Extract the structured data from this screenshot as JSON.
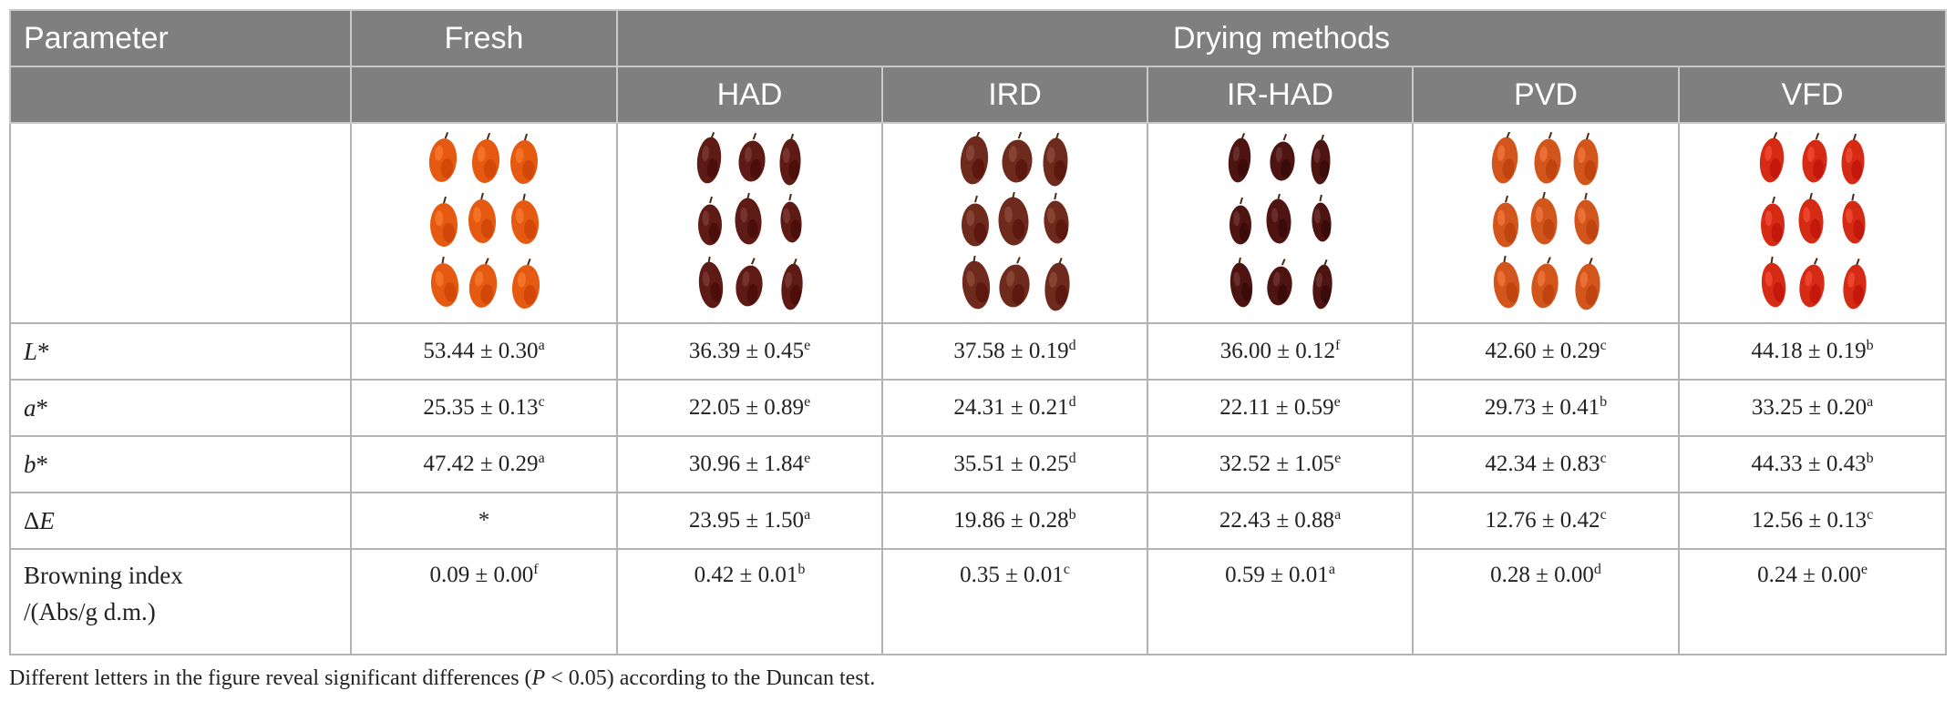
{
  "header": {
    "parameter": "Parameter",
    "fresh": "Fresh",
    "group": "Drying methods",
    "methods": [
      "HAD",
      "IRD",
      "IR-HAD",
      "PVD",
      "VFD"
    ]
  },
  "images": {
    "fresh": "#e55a10",
    "had": "#5e1a14",
    "ird": "#6e2a1c",
    "irhad": "#4e1412",
    "pvd": "#d2561c",
    "vfd": "#d52a14"
  },
  "rows": [
    {
      "label_italic": "L",
      "label_rest": "*",
      "cells": [
        [
          "53.44 ± 0.30",
          "a"
        ],
        [
          "36.39 ± 0.45",
          "e"
        ],
        [
          "37.58 ± 0.19",
          "d"
        ],
        [
          "36.00 ± 0.12",
          "f"
        ],
        [
          "42.60 ± 0.29",
          "c"
        ],
        [
          "44.18 ± 0.19",
          "b"
        ]
      ]
    },
    {
      "label_italic": "a",
      "label_rest": "*",
      "cells": [
        [
          "25.35 ± 0.13",
          "c"
        ],
        [
          "22.05 ± 0.89",
          "e"
        ],
        [
          "24.31 ± 0.21",
          "d"
        ],
        [
          "22.11 ± 0.59",
          "e"
        ],
        [
          "29.73 ± 0.41",
          "b"
        ],
        [
          "33.25 ± 0.20",
          "a"
        ]
      ]
    },
    {
      "label_italic": "b",
      "label_rest": "*",
      "cells": [
        [
          "47.42 ± 0.29",
          "a"
        ],
        [
          "30.96 ± 1.84",
          "e"
        ],
        [
          "35.51 ± 0.25",
          "d"
        ],
        [
          "32.52 ± 1.05",
          "e"
        ],
        [
          "42.34 ± 0.83",
          "c"
        ],
        [
          "44.33 ± 0.43",
          "b"
        ]
      ]
    },
    {
      "label_prefix": "Δ",
      "label_italic": "E",
      "cells": [
        [
          "*",
          ""
        ],
        [
          "23.95 ± 1.50",
          "a"
        ],
        [
          "19.86 ± 0.28",
          "b"
        ],
        [
          "22.43 ± 0.88",
          "a"
        ],
        [
          "12.76 ± 0.42",
          "c"
        ],
        [
          "12.56 ± 0.13",
          "c"
        ]
      ]
    }
  ],
  "browning": {
    "label_line1": "Browning index",
    "label_line2": "/(Abs/g d.m.)",
    "cells": [
      [
        "0.09 ± 0.00",
        "f"
      ],
      [
        "0.42 ± 0.01",
        "b"
      ],
      [
        "0.35 ± 0.01",
        "c"
      ],
      [
        "0.59 ± 0.01",
        "a"
      ],
      [
        "0.28 ± 0.00",
        "d"
      ],
      [
        "0.24 ± 0.00",
        "e"
      ]
    ]
  },
  "note": {
    "before": "Different letters in the figure reveal significant differences (",
    "p": "P",
    "after": " < 0.05) according to the Duncan test."
  }
}
